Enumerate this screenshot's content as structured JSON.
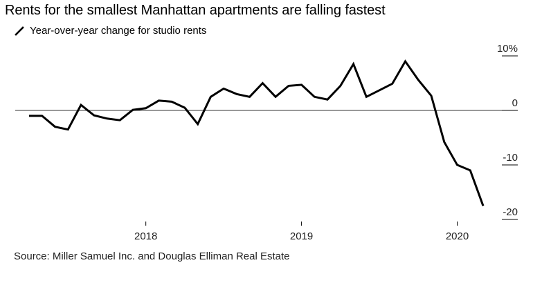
{
  "title": "Rents for the smallest Manhattan apartments are falling fastest",
  "source": "Source: Miller Samuel Inc. and Douglas Elliman Real Estate",
  "colors": {
    "line": "#000000",
    "zero_line": "#333333",
    "axis": "#000000"
  },
  "chart_data": {
    "type": "line",
    "series": [
      {
        "name": "Year-over-year change for studio rents",
        "x": [
          "2017-10",
          "2017-11",
          "2017-12",
          "2018-01",
          "2018-02",
          "2018-03",
          "2018-04",
          "2018-05",
          "2018-06",
          "2018-07",
          "2018-08",
          "2018-09",
          "2018-10",
          "2018-11",
          "2018-12",
          "2019-01",
          "2019-02",
          "2019-03",
          "2019-04",
          "2019-05",
          "2019-06",
          "2019-07",
          "2019-08",
          "2019-09",
          "2019-10",
          "2019-11",
          "2019-12",
          "2020-01",
          "2020-02",
          "2020-03",
          "2020-04",
          "2020-05",
          "2020-06",
          "2020-07",
          "2020-08",
          "2020-09"
        ],
        "values": [
          -1.0,
          -1.0,
          -3.0,
          -3.5,
          1.0,
          -0.9,
          -1.5,
          -1.8,
          0.1,
          0.4,
          1.8,
          1.6,
          0.5,
          -2.5,
          2.5,
          4.0,
          3.0,
          2.5,
          5.0,
          2.5,
          4.5,
          4.7,
          2.5,
          2.0,
          4.5,
          8.5,
          2.5,
          3.7,
          4.9,
          9.0,
          5.6,
          2.7,
          -5.8,
          -10.0,
          -11.0,
          -17.5
        ]
      }
    ],
    "y_ticks": [
      10,
      0,
      -10,
      -20
    ],
    "y_tick_labels": [
      "10%",
      "0",
      "-10",
      "-20"
    ],
    "x_tick_labels": [
      "2018",
      "2019",
      "2020"
    ],
    "x_ticks": [
      "2018-07",
      "2019-07",
      "2020-07"
    ],
    "ylim": [
      -21,
      12
    ],
    "grid": false,
    "zero_line": true,
    "legend": "top-left"
  }
}
